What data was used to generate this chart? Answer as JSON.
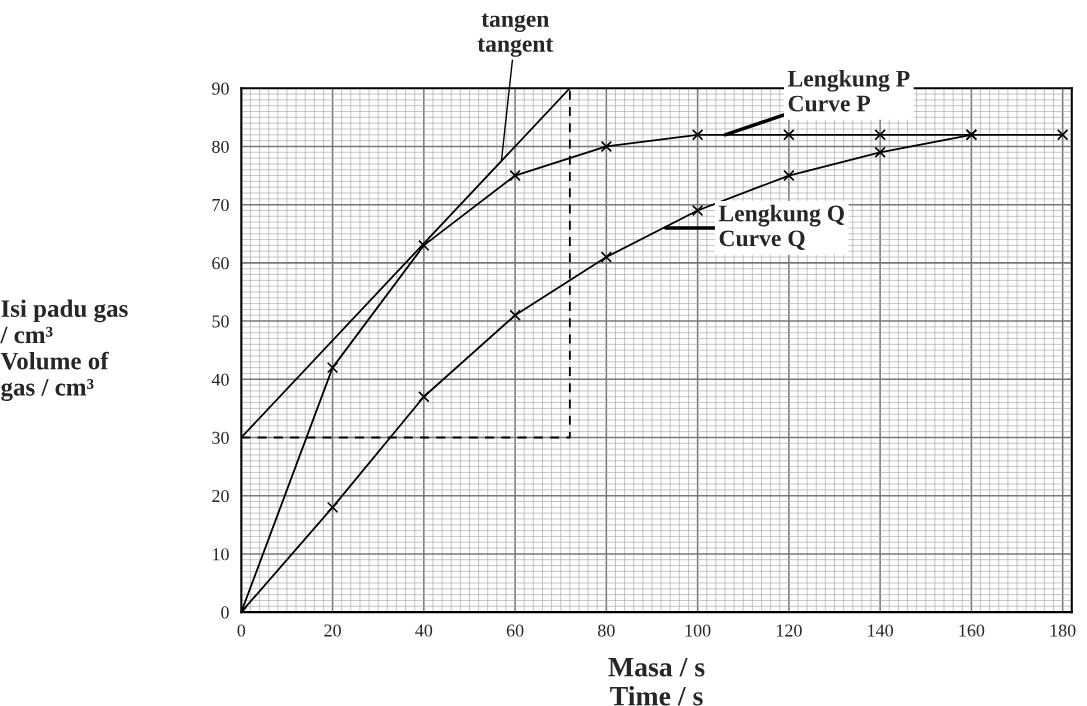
{
  "chart_data": {
    "type": "line",
    "xlabel": "Masa / s\nTime / s",
    "ylabel": "Isi padu gas\n/ cm³\nVolume of\ngas / cm³",
    "series": [
      {
        "color": "#000000",
        "marker": "cross",
        "line_style": "solid",
        "x": [
          0,
          20,
          40,
          60,
          80,
          100,
          120,
          140,
          160,
          180
        ],
        "values": [
          0,
          42,
          63,
          75,
          80,
          82,
          82,
          82,
          82,
          82
        ]
      },
      {
        "color": "#000000",
        "marker": "cross",
        "line_style": "solid",
        "x": [
          0,
          20,
          40,
          60,
          80,
          100,
          120,
          140,
          160
        ],
        "values": [
          0,
          18,
          37,
          51,
          61,
          69,
          75,
          79,
          82
        ]
      },
      {
        "color": "#000000",
        "marker": "none",
        "line_style": "solid",
        "x": [
          0,
          72
        ],
        "values": [
          30,
          90
        ]
      },
      {
        "color": "#000000",
        "marker": "none",
        "line_style": "dashed",
        "x": [
          0,
          72,
          72
        ],
        "values": [
          30,
          30,
          90
        ]
      }
    ],
    "annotations": [
      {
        "text": "tangen\ntangent",
        "x": 57,
        "y": 77.5
      },
      {
        "text": "Lengkung P\nCurve P",
        "x": 106,
        "y": 82
      },
      {
        "text": "Lengkung Q\nCurve Q",
        "x": 93,
        "y": 66
      }
    ],
    "xlim": [
      0,
      182
    ],
    "ylim": [
      0,
      90
    ],
    "xticks": [
      0,
      20,
      40,
      60,
      80,
      100,
      120,
      140,
      160,
      180
    ],
    "yticks": [
      0,
      10,
      20,
      30,
      40,
      50,
      60,
      70,
      80,
      90
    ],
    "grid": true
  }
}
